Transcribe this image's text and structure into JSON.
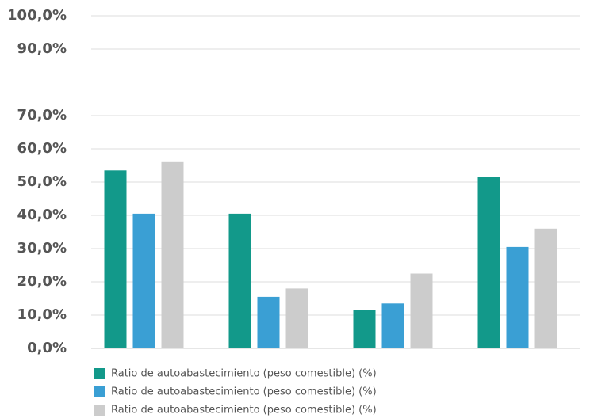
{
  "chart_data": {
    "type": "bar",
    "categories": [
      null,
      null,
      null,
      null
    ],
    "series": [
      {
        "name": "Ratio de autoabastecimiento (peso comestible) (%)",
        "color": "#12998a",
        "values": [
          53.5,
          40.5,
          11.5,
          51.5
        ]
      },
      {
        "name": "Ratio de autoabastecimiento (peso comestible) (%)",
        "color": "#3a9fd4",
        "values": [
          40.5,
          15.5,
          13.5,
          30.5
        ]
      },
      {
        "name": "Ratio de autoabastecimiento (peso comestible) (%)",
        "color": "#cccccc",
        "values": [
          56,
          18,
          22.5,
          36
        ]
      }
    ],
    "ylim": [
      0,
      100
    ],
    "yticks": [
      {
        "value": 0,
        "label": "0,0%"
      },
      {
        "value": 10,
        "label": "10,0%"
      },
      {
        "value": 20,
        "label": "20,0%"
      },
      {
        "value": 30,
        "label": "30,0%"
      },
      {
        "value": 40,
        "label": "40,0%"
      },
      {
        "value": 50,
        "label": "50,0%"
      },
      {
        "value": 60,
        "label": "60,0%"
      },
      {
        "value": 70,
        "label": "70,0%"
      },
      {
        "value": 90,
        "label": "90,0%"
      },
      {
        "value": 100,
        "label": "100,0%"
      }
    ],
    "grid": true,
    "legend": "bottom"
  }
}
